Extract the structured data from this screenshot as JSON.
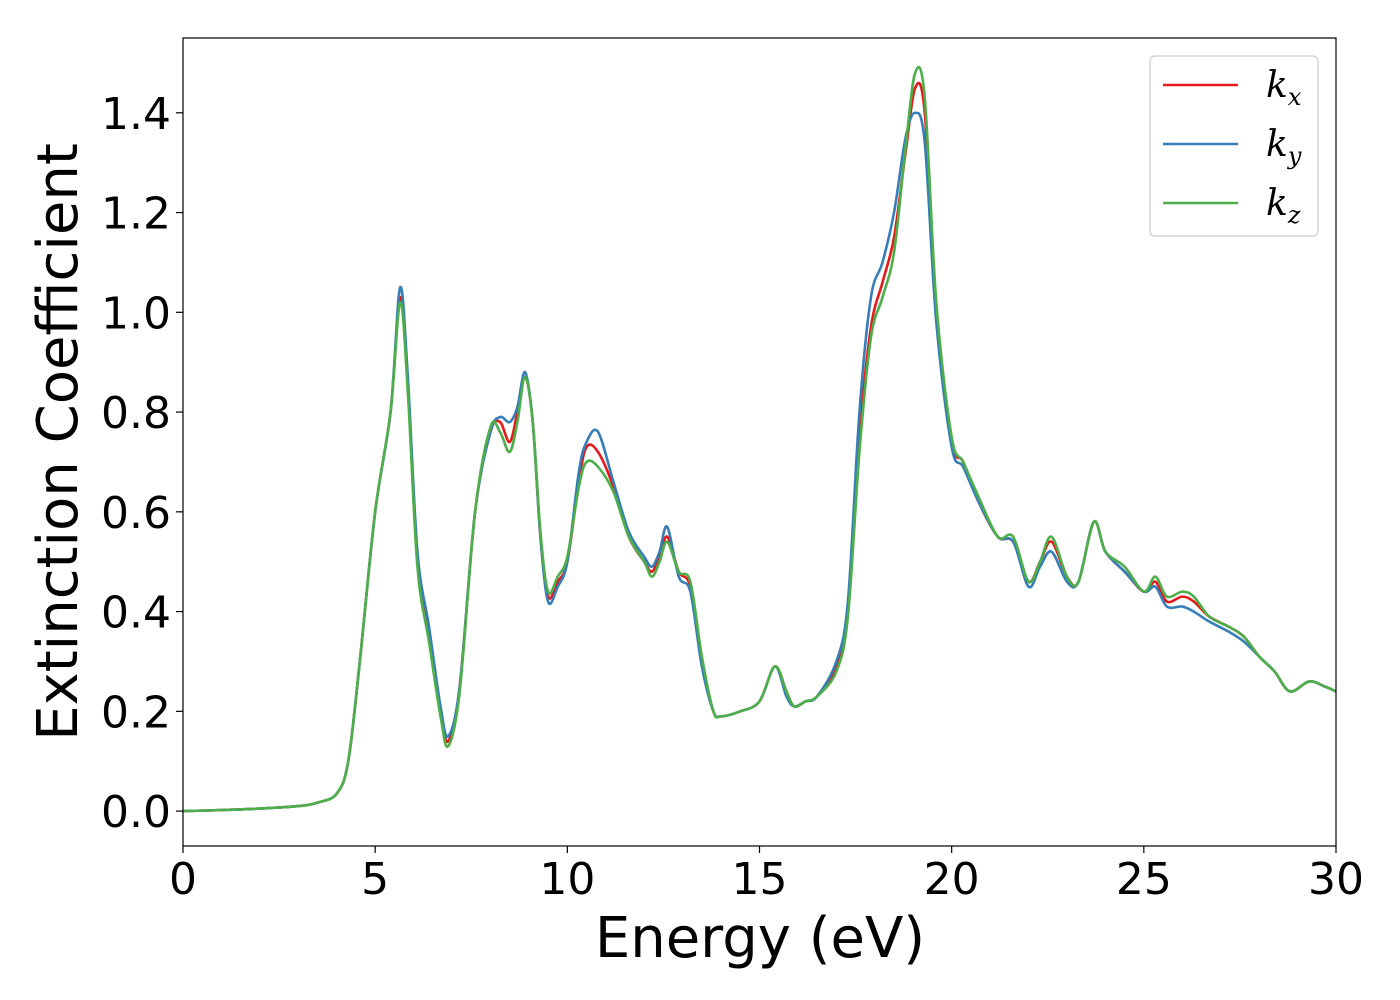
{
  "chart_data": {
    "type": "line",
    "title": "",
    "xlabel": "Energy (eV)",
    "ylabel": "Extinction Coefficient",
    "xlim": [
      0,
      30
    ],
    "ylim": [
      -0.07,
      1.55
    ],
    "xticks": [
      0,
      5,
      10,
      15,
      20,
      25,
      30
    ],
    "xtick_labels": [
      "0",
      "5",
      "10",
      "15",
      "20",
      "25",
      "30"
    ],
    "yticks": [
      0.0,
      0.2,
      0.4,
      0.6,
      0.8,
      1.0,
      1.2,
      1.4
    ],
    "ytick_labels": [
      "0.0",
      "0.2",
      "0.4",
      "0.6",
      "0.8",
      "1.0",
      "1.2",
      "1.4"
    ],
    "grid": false,
    "legend_position": "top-right",
    "series": [
      {
        "name": "k_x",
        "legend_base": "k",
        "legend_sub": "x",
        "color": "#e41a1c",
        "x": [
          0,
          1,
          2,
          3,
          3.5,
          4,
          4.3,
          4.6,
          5.0,
          5.4,
          5.65,
          5.85,
          6.1,
          6.4,
          6.7,
          6.9,
          7.2,
          7.6,
          8.0,
          8.25,
          8.5,
          8.7,
          8.9,
          9.1,
          9.3,
          9.5,
          9.75,
          10.0,
          10.3,
          10.5,
          10.8,
          11.2,
          11.6,
          12.0,
          12.2,
          12.4,
          12.6,
          12.9,
          13.2,
          13.5,
          13.8,
          14.0,
          14.5,
          15.0,
          15.4,
          15.7,
          15.9,
          16.2,
          16.5,
          17.0,
          17.3,
          17.6,
          17.9,
          18.2,
          18.5,
          18.8,
          19.05,
          19.3,
          19.6,
          20.0,
          20.3,
          20.7,
          21.2,
          21.6,
          22.0,
          22.3,
          22.6,
          23.0,
          23.3,
          23.7,
          24.0,
          24.5,
          25.0,
          25.3,
          25.6,
          26.0,
          26.3,
          26.7,
          27.2,
          27.6,
          28.0,
          28.4,
          28.8,
          29.3,
          29.7,
          30.0
        ],
        "y": [
          0.0,
          0.002,
          0.005,
          0.01,
          0.017,
          0.035,
          0.1,
          0.3,
          0.6,
          0.8,
          1.03,
          0.85,
          0.5,
          0.35,
          0.2,
          0.14,
          0.25,
          0.6,
          0.76,
          0.78,
          0.74,
          0.8,
          0.87,
          0.78,
          0.55,
          0.43,
          0.46,
          0.5,
          0.66,
          0.73,
          0.72,
          0.65,
          0.55,
          0.5,
          0.48,
          0.51,
          0.55,
          0.48,
          0.45,
          0.3,
          0.2,
          0.19,
          0.2,
          0.22,
          0.29,
          0.24,
          0.21,
          0.22,
          0.23,
          0.29,
          0.4,
          0.75,
          0.97,
          1.06,
          1.15,
          1.32,
          1.45,
          1.4,
          1.0,
          0.74,
          0.7,
          0.62,
          0.55,
          0.54,
          0.46,
          0.5,
          0.54,
          0.47,
          0.46,
          0.58,
          0.52,
          0.48,
          0.44,
          0.46,
          0.42,
          0.43,
          0.42,
          0.39,
          0.37,
          0.35,
          0.31,
          0.28,
          0.24,
          0.26,
          0.25,
          0.24
        ]
      },
      {
        "name": "k_y",
        "legend_base": "k",
        "legend_sub": "y",
        "color": "#377eb8",
        "x": [
          0,
          1,
          2,
          3,
          3.5,
          4,
          4.3,
          4.6,
          5.0,
          5.4,
          5.65,
          5.85,
          6.1,
          6.4,
          6.7,
          6.9,
          7.2,
          7.6,
          8.0,
          8.25,
          8.5,
          8.7,
          8.9,
          9.1,
          9.3,
          9.5,
          9.75,
          10.0,
          10.3,
          10.5,
          10.8,
          11.2,
          11.6,
          12.0,
          12.2,
          12.4,
          12.6,
          12.9,
          13.2,
          13.5,
          13.8,
          14.0,
          14.5,
          15.0,
          15.4,
          15.7,
          15.9,
          16.2,
          16.5,
          17.0,
          17.3,
          17.6,
          17.9,
          18.2,
          18.5,
          18.8,
          19.05,
          19.3,
          19.6,
          20.0,
          20.3,
          20.7,
          21.2,
          21.6,
          22.0,
          22.3,
          22.6,
          23.0,
          23.3,
          23.7,
          24.0,
          24.5,
          25.0,
          25.3,
          25.6,
          26.0,
          26.3,
          26.7,
          27.2,
          27.6,
          28.0,
          28.4,
          28.8,
          29.3,
          29.7,
          30.0
        ],
        "y": [
          0.0,
          0.002,
          0.005,
          0.01,
          0.017,
          0.035,
          0.1,
          0.3,
          0.6,
          0.8,
          1.05,
          0.87,
          0.52,
          0.37,
          0.21,
          0.15,
          0.25,
          0.6,
          0.76,
          0.79,
          0.78,
          0.81,
          0.88,
          0.78,
          0.55,
          0.42,
          0.45,
          0.5,
          0.68,
          0.74,
          0.76,
          0.66,
          0.56,
          0.51,
          0.49,
          0.52,
          0.57,
          0.47,
          0.44,
          0.29,
          0.2,
          0.19,
          0.2,
          0.22,
          0.29,
          0.23,
          0.21,
          0.22,
          0.23,
          0.3,
          0.42,
          0.8,
          1.03,
          1.1,
          1.2,
          1.35,
          1.4,
          1.34,
          0.98,
          0.73,
          0.69,
          0.62,
          0.55,
          0.54,
          0.45,
          0.49,
          0.52,
          0.46,
          0.46,
          0.58,
          0.52,
          0.48,
          0.44,
          0.45,
          0.41,
          0.41,
          0.4,
          0.38,
          0.36,
          0.34,
          0.31,
          0.28,
          0.24,
          0.26,
          0.25,
          0.24
        ]
      },
      {
        "name": "k_z",
        "legend_base": "k",
        "legend_sub": "z",
        "color": "#4daf4a",
        "x": [
          0,
          1,
          2,
          3,
          3.5,
          4,
          4.3,
          4.6,
          5.0,
          5.4,
          5.65,
          5.85,
          6.1,
          6.4,
          6.7,
          6.9,
          7.2,
          7.6,
          8.0,
          8.25,
          8.5,
          8.7,
          8.9,
          9.1,
          9.3,
          9.5,
          9.75,
          10.0,
          10.3,
          10.5,
          10.8,
          11.2,
          11.6,
          12.0,
          12.2,
          12.4,
          12.6,
          12.9,
          13.2,
          13.5,
          13.8,
          14.0,
          14.5,
          15.0,
          15.4,
          15.7,
          15.9,
          16.2,
          16.5,
          17.0,
          17.3,
          17.6,
          17.9,
          18.2,
          18.5,
          18.8,
          19.05,
          19.3,
          19.6,
          20.0,
          20.3,
          20.7,
          21.2,
          21.6,
          22.0,
          22.3,
          22.6,
          23.0,
          23.3,
          23.7,
          24.0,
          24.5,
          25.0,
          25.3,
          25.6,
          26.0,
          26.3,
          26.7,
          27.2,
          27.6,
          28.0,
          28.4,
          28.8,
          29.3,
          29.7,
          30.0
        ],
        "y": [
          0.0,
          0.002,
          0.005,
          0.01,
          0.017,
          0.035,
          0.1,
          0.3,
          0.6,
          0.8,
          1.02,
          0.84,
          0.49,
          0.34,
          0.19,
          0.13,
          0.24,
          0.6,
          0.77,
          0.76,
          0.72,
          0.78,
          0.87,
          0.78,
          0.56,
          0.44,
          0.47,
          0.51,
          0.65,
          0.7,
          0.69,
          0.64,
          0.55,
          0.5,
          0.47,
          0.5,
          0.54,
          0.48,
          0.46,
          0.31,
          0.2,
          0.19,
          0.2,
          0.22,
          0.29,
          0.24,
          0.21,
          0.22,
          0.23,
          0.28,
          0.39,
          0.72,
          0.95,
          1.03,
          1.12,
          1.33,
          1.48,
          1.43,
          1.02,
          0.75,
          0.7,
          0.63,
          0.55,
          0.55,
          0.46,
          0.5,
          0.55,
          0.47,
          0.46,
          0.58,
          0.52,
          0.49,
          0.44,
          0.47,
          0.43,
          0.44,
          0.43,
          0.39,
          0.37,
          0.35,
          0.31,
          0.28,
          0.24,
          0.26,
          0.25,
          0.24
        ]
      }
    ]
  }
}
